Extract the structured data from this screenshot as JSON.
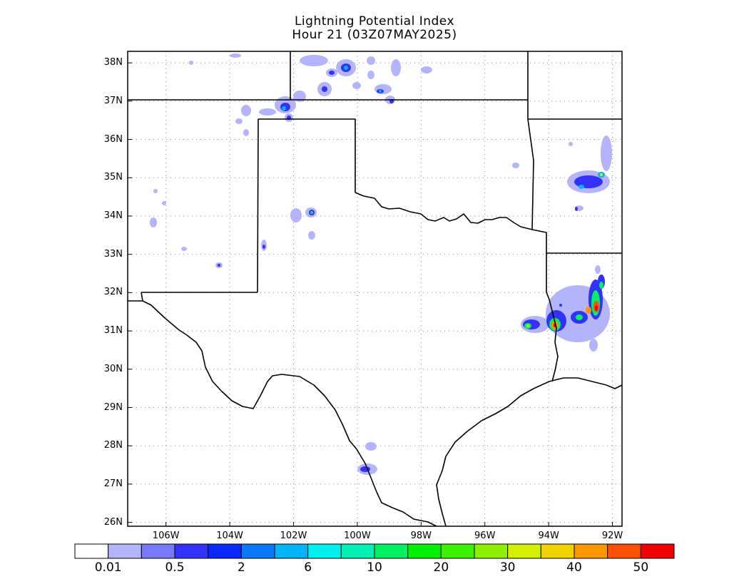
{
  "title": {
    "line1": "Lightning Potential Index",
    "line2": "Hour 21 (03Z07MAY2025)"
  },
  "map": {
    "lat_labels": [
      "38N",
      "37N",
      "36N",
      "35N",
      "34N",
      "33N",
      "32N",
      "31N",
      "30N",
      "29N",
      "28N",
      "27N",
      "26N"
    ],
    "lon_labels": [
      "106W",
      "104W",
      "102W",
      "100W",
      "98W",
      "96W",
      "94W",
      "92W"
    ],
    "lat_range": [
      25.9,
      38.3
    ],
    "lon_range": [
      -107.2,
      -91.7
    ],
    "grid": "dotted"
  },
  "colorbar": {
    "colors": [
      "#ffffff",
      "#b4b4fa",
      "#7878fa",
      "#3232fa",
      "#0a28fa",
      "#0a78fa",
      "#00b4fa",
      "#00f0f0",
      "#00f0b4",
      "#00f064",
      "#00f000",
      "#3cf000",
      "#8cf000",
      "#d2f000",
      "#f0d200",
      "#fa9600",
      "#fa5000",
      "#f00000"
    ],
    "labels": [
      {
        "text": "0.01",
        "after": 1
      },
      {
        "text": "0.5",
        "after": 3
      },
      {
        "text": "2",
        "after": 5
      },
      {
        "text": "6",
        "after": 7
      },
      {
        "text": "10",
        "after": 9
      },
      {
        "text": "20",
        "after": 11
      },
      {
        "text": "30",
        "after": 13
      },
      {
        "text": "40",
        "after": 15
      },
      {
        "text": "50",
        "after": 17
      }
    ]
  }
}
